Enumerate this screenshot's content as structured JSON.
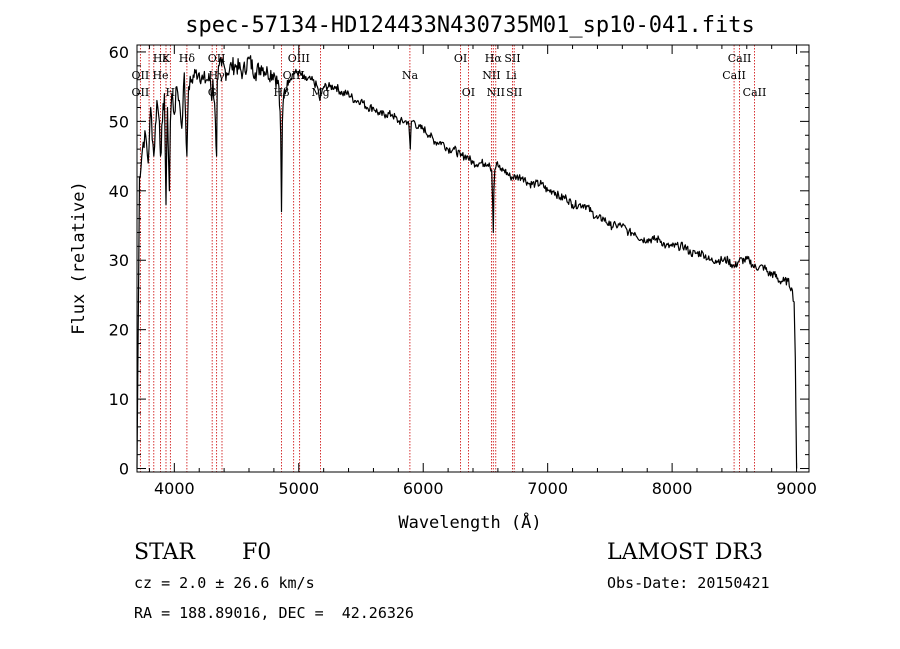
{
  "chart_data": {
    "type": "line",
    "title": "spec-57134-HD124433N430735M01_sp10-041.fits",
    "xlabel": "Wavelength (Å)",
    "ylabel": "Flux (relative)",
    "xlim": [
      3700,
      9100
    ],
    "ylim": [
      -0.5,
      61
    ],
    "xticks": [
      4000,
      5000,
      6000,
      7000,
      8000,
      9000
    ],
    "xtick_labels": [
      "4000",
      "5000",
      "6000",
      "7000",
      "8000",
      "9000"
    ],
    "yticks": [
      0,
      10,
      20,
      30,
      40,
      50,
      60
    ],
    "ytick_labels": [
      "0",
      "10",
      "20",
      "30",
      "40",
      "50",
      "60"
    ],
    "grid": false,
    "series": [
      {
        "name": "spectrum",
        "x": [
          3700,
          3720,
          3750,
          3770,
          3790,
          3810,
          3835,
          3860,
          3880,
          3889,
          3905,
          3920,
          3933,
          3945,
          3960,
          3968,
          3980,
          4000,
          4020,
          4040,
          4060,
          4080,
          4101,
          4115,
          4140,
          4170,
          4200,
          4230,
          4260,
          4290,
          4300,
          4310,
          4330,
          4340,
          4345,
          4360,
          4380,
          4420,
          4460,
          4500,
          4550,
          4600,
          4650,
          4700,
          4750,
          4800,
          4840,
          4855,
          4861,
          4868,
          4880,
          4920,
          4960,
          5000,
          5050,
          5100,
          5150,
          5170,
          5183,
          5200,
          5250,
          5300,
          5350,
          5400,
          5450,
          5500,
          5550,
          5600,
          5650,
          5700,
          5750,
          5800,
          5850,
          5880,
          5890,
          5896,
          5905,
          5930,
          5960,
          6000,
          6050,
          6100,
          6150,
          6200,
          6250,
          6300,
          6350,
          6400,
          6450,
          6500,
          6530,
          6550,
          6558,
          6563,
          6568,
          6575,
          6590,
          6620,
          6650,
          6700,
          6750,
          6800,
          6850,
          6900,
          6950,
          7000,
          7050,
          7100,
          7150,
          7200,
          7250,
          7300,
          7350,
          7400,
          7450,
          7500,
          7550,
          7600,
          7650,
          7700,
          7750,
          7800,
          7850,
          7900,
          7950,
          8000,
          8050,
          8100,
          8150,
          8200,
          8250,
          8300,
          8350,
          8400,
          8450,
          8500,
          8540,
          8580,
          8620,
          8660,
          8700,
          8740,
          8780,
          8820,
          8860,
          8900,
          8930,
          8960,
          8980,
          8990,
          8995,
          9000
        ],
        "y": [
          0,
          42,
          47,
          48,
          44,
          52,
          45,
          53,
          50,
          45,
          50,
          54,
          38,
          52,
          40,
          50,
          54,
          51,
          55,
          53,
          49,
          57,
          45,
          55,
          56,
          57,
          57,
          56,
          56,
          56,
          53,
          56,
          50,
          45,
          56,
          58,
          58,
          57,
          58,
          58,
          57,
          59,
          57,
          58,
          57,
          57,
          55,
          48,
          37,
          50,
          54,
          56,
          57,
          57,
          56,
          56,
          55,
          53,
          54,
          55,
          55,
          55,
          54,
          54,
          53,
          53,
          52,
          52,
          51,
          51,
          51,
          50,
          50,
          50,
          48,
          46,
          50,
          50,
          49,
          49,
          48,
          47,
          47,
          46,
          46,
          45,
          45,
          44,
          44,
          44,
          44,
          43,
          38,
          34,
          40,
          43,
          44,
          43,
          43,
          42,
          42,
          42,
          41,
          41,
          41,
          40,
          40,
          39,
          39,
          38,
          38,
          38,
          37,
          36,
          36,
          35,
          35,
          35,
          34,
          34,
          33,
          33,
          33,
          33,
          32,
          32,
          32,
          32,
          31,
          31,
          31,
          30,
          30,
          30,
          30,
          29,
          30,
          30,
          30,
          29,
          29,
          29,
          28,
          28,
          27,
          27,
          27,
          26,
          24,
          16,
          8,
          0
        ]
      }
    ],
    "line_labels": [
      {
        "name": "Hε",
        "wavelength": 3889,
        "row": 0
      },
      {
        "name": "K",
        "wavelength": 3933,
        "row": 0
      },
      {
        "name": "Hδ",
        "wavelength": 4101,
        "row": 0
      },
      {
        "name": "OII",
        "wavelength": 4340,
        "row": 0
      },
      {
        "name": "OIII",
        "wavelength": 5000,
        "row": 0
      },
      {
        "name": "OI",
        "wavelength": 6300,
        "row": 0
      },
      {
        "name": "Hα",
        "wavelength": 6563,
        "row": 0
      },
      {
        "name": "SII",
        "wavelength": 6717,
        "row": 0
      },
      {
        "name": "CaII",
        "wavelength": 8542,
        "row": 0
      },
      {
        "name": "OII",
        "wavelength": 3727,
        "row": 1
      },
      {
        "name": "He",
        "wavelength": 3889,
        "row": 1
      },
      {
        "name": "Hγ",
        "wavelength": 4340,
        "row": 1
      },
      {
        "name": "OIII",
        "wavelength": 4959,
        "row": 1
      },
      {
        "name": "Na",
        "wavelength": 5893,
        "row": 1
      },
      {
        "name": "NII",
        "wavelength": 6548,
        "row": 1
      },
      {
        "name": "Li",
        "wavelength": 6708,
        "row": 1
      },
      {
        "name": "CaII",
        "wavelength": 8498,
        "row": 1
      },
      {
        "name": "OII",
        "wavelength": 3727,
        "row": 2
      },
      {
        "name": "H",
        "wavelength": 3968,
        "row": 2
      },
      {
        "name": "G",
        "wavelength": 4304,
        "row": 2
      },
      {
        "name": "Hβ",
        "wavelength": 4861,
        "row": 2
      },
      {
        "name": "Mg",
        "wavelength": 5175,
        "row": 2
      },
      {
        "name": "OI",
        "wavelength": 6363,
        "row": 2
      },
      {
        "name": "NII",
        "wavelength": 6583,
        "row": 2
      },
      {
        "name": "SII",
        "wavelength": 6731,
        "row": 2
      },
      {
        "name": "CaII",
        "wavelength": 8662,
        "row": 2
      }
    ],
    "marker_lines": [
      3727,
      3797,
      3835,
      3889,
      3933,
      3968,
      4101,
      4304,
      4340,
      4383,
      4861,
      4959,
      5007,
      5175,
      5893,
      6300,
      6363,
      6548,
      6563,
      6583,
      6717,
      6731,
      8498,
      8542,
      8662
    ],
    "marker_color": "#cc0000"
  },
  "info": {
    "class": "STAR",
    "subclass": "F0",
    "survey": "LAMOST DR3",
    "cz": "cz = 2.0 ± 26.6 km/s",
    "obs_date": "Obs-Date: 20150421",
    "coords": "RA = 188.89016, DEC =  42.26326"
  }
}
